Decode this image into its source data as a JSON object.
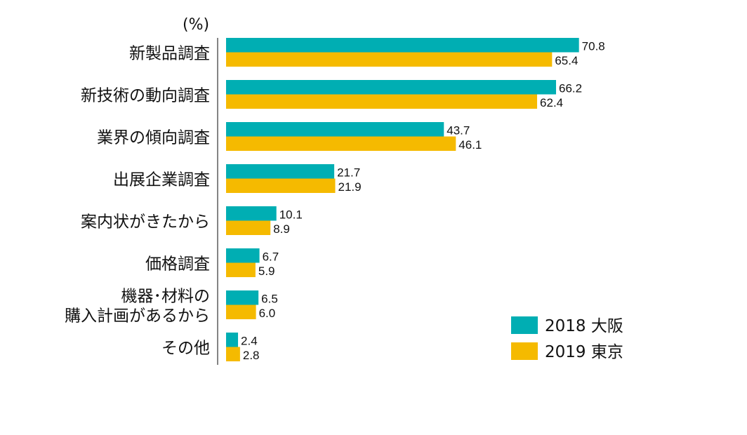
{
  "chart_data": {
    "type": "bar",
    "orientation": "horizontal",
    "unit": "(%)",
    "categories": [
      [
        "新製品調査"
      ],
      [
        "新技術の動向調査"
      ],
      [
        "業界の傾向調査"
      ],
      [
        "出展企業調査"
      ],
      [
        "案内状がきたから"
      ],
      [
        "価格調査"
      ],
      [
        "機器･材料の",
        "購入計画があるから"
      ],
      [
        "その他"
      ]
    ],
    "series": [
      {
        "name": "2018 大阪",
        "color": "#00AEB3",
        "values": [
          70.8,
          66.2,
          43.7,
          21.7,
          10.1,
          6.7,
          6.5,
          2.4
        ]
      },
      {
        "name": "2019 東京",
        "color": "#F5BA00",
        "values": [
          65.4,
          62.4,
          46.1,
          21.9,
          8.9,
          5.9,
          6.0,
          2.8
        ]
      }
    ],
    "xlim": [
      0,
      100
    ],
    "grid": false,
    "legend_position": "bottom-right"
  }
}
